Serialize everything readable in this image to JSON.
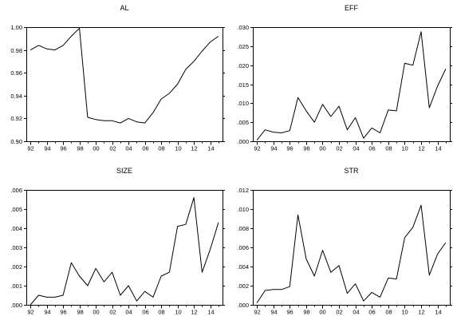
{
  "chart_data": [
    {
      "type": "line",
      "title": "AL",
      "x": [
        "92",
        "93",
        "94",
        "95",
        "96",
        "97",
        "98",
        "99",
        "00",
        "01",
        "02",
        "03",
        "04",
        "05",
        "06",
        "07",
        "08",
        "09",
        "10",
        "11",
        "12",
        "13",
        "14",
        "15"
      ],
      "x_tick_labels": [
        "92",
        "94",
        "96",
        "98",
        "00",
        "02",
        "04",
        "06",
        "08",
        "10",
        "12",
        "14"
      ],
      "y_tick_labels": [
        "0.90",
        "0.92",
        "0.94",
        "0.96",
        "0.98",
        "1.00"
      ],
      "y_ticks": [
        0.9,
        0.92,
        0.94,
        0.96,
        0.98,
        1.0
      ],
      "ylim": [
        0.9,
        1.0
      ],
      "series": [
        {
          "values": [
            0.98,
            0.984,
            0.981,
            0.98,
            0.984,
            0.992,
            0.999,
            0.921,
            0.919,
            0.918,
            0.918,
            0.916,
            0.92,
            0.917,
            0.916,
            0.925,
            0.937,
            0.942,
            0.95,
            0.963,
            0.97,
            0.979,
            0.987,
            0.992
          ]
        }
      ]
    },
    {
      "type": "line",
      "title": "EFF",
      "x": [
        "92",
        "93",
        "94",
        "95",
        "96",
        "97",
        "98",
        "99",
        "00",
        "01",
        "02",
        "03",
        "04",
        "05",
        "06",
        "07",
        "08",
        "09",
        "10",
        "11",
        "12",
        "13",
        "14",
        "15"
      ],
      "x_tick_labels": [
        "92",
        "94",
        "96",
        "98",
        "00",
        "02",
        "04",
        "06",
        "08",
        "10",
        "12",
        "14"
      ],
      "y_tick_labels": [
        ".000",
        ".005",
        ".010",
        ".015",
        ".020",
        ".025",
        ".030"
      ],
      "y_ticks": [
        0.0,
        0.005,
        0.01,
        0.015,
        0.02,
        0.025,
        0.03
      ],
      "ylim": [
        0.0,
        0.03
      ],
      "series": [
        {
          "values": [
            0.0003,
            0.003,
            0.0024,
            0.0022,
            0.0028,
            0.0115,
            0.008,
            0.005,
            0.0097,
            0.0065,
            0.0092,
            0.003,
            0.0062,
            0.0008,
            0.0035,
            0.0022,
            0.0082,
            0.008,
            0.0205,
            0.02,
            0.0288,
            0.0088,
            0.0145,
            0.019
          ]
        }
      ]
    },
    {
      "type": "line",
      "title": "SIZE",
      "x": [
        "92",
        "93",
        "94",
        "95",
        "96",
        "97",
        "98",
        "99",
        "00",
        "01",
        "02",
        "03",
        "04",
        "05",
        "06",
        "07",
        "08",
        "09",
        "10",
        "11",
        "12",
        "13",
        "14",
        "15"
      ],
      "x_tick_labels": [
        "92",
        "94",
        "96",
        "98",
        "00",
        "02",
        "04",
        "06",
        "08",
        "10",
        "12",
        "14"
      ],
      "y_tick_labels": [
        ".000",
        ".001",
        ".002",
        ".003",
        ".004",
        ".005",
        ".006"
      ],
      "y_ticks": [
        0.0,
        0.001,
        0.002,
        0.003,
        0.004,
        0.005,
        0.006
      ],
      "ylim": [
        0.0,
        0.006
      ],
      "series": [
        {
          "values": [
            0.0,
            0.0005,
            0.0004,
            0.0004,
            0.0005,
            0.0022,
            0.0015,
            0.001,
            0.0019,
            0.0012,
            0.0017,
            0.0005,
            0.001,
            0.0002,
            0.0007,
            0.0004,
            0.0015,
            0.0017,
            0.0041,
            0.0042,
            0.0056,
            0.0017,
            0.0029,
            0.0043
          ]
        }
      ]
    },
    {
      "type": "line",
      "title": "STR",
      "x": [
        "92",
        "93",
        "94",
        "95",
        "96",
        "97",
        "98",
        "99",
        "00",
        "01",
        "02",
        "03",
        "04",
        "05",
        "06",
        "07",
        "08",
        "09",
        "10",
        "11",
        "12",
        "13",
        "14",
        "15"
      ],
      "x_tick_labels": [
        "92",
        "94",
        "96",
        "98",
        "00",
        "02",
        "04",
        "06",
        "08",
        "10",
        "12",
        "14"
      ],
      "y_tick_labels": [
        ".000",
        ".002",
        ".004",
        ".006",
        ".008",
        ".010",
        ".012"
      ],
      "y_ticks": [
        0.0,
        0.002,
        0.004,
        0.006,
        0.008,
        0.01,
        0.012
      ],
      "ylim": [
        0.0,
        0.012
      ],
      "series": [
        {
          "values": [
            0.0002,
            0.0015,
            0.0016,
            0.0016,
            0.0019,
            0.0094,
            0.0048,
            0.003,
            0.0057,
            0.0034,
            0.0041,
            0.0012,
            0.0022,
            0.0004,
            0.0013,
            0.0008,
            0.0028,
            0.0027,
            0.007,
            0.0081,
            0.0104,
            0.0031,
            0.0053,
            0.0065
          ]
        }
      ]
    }
  ]
}
